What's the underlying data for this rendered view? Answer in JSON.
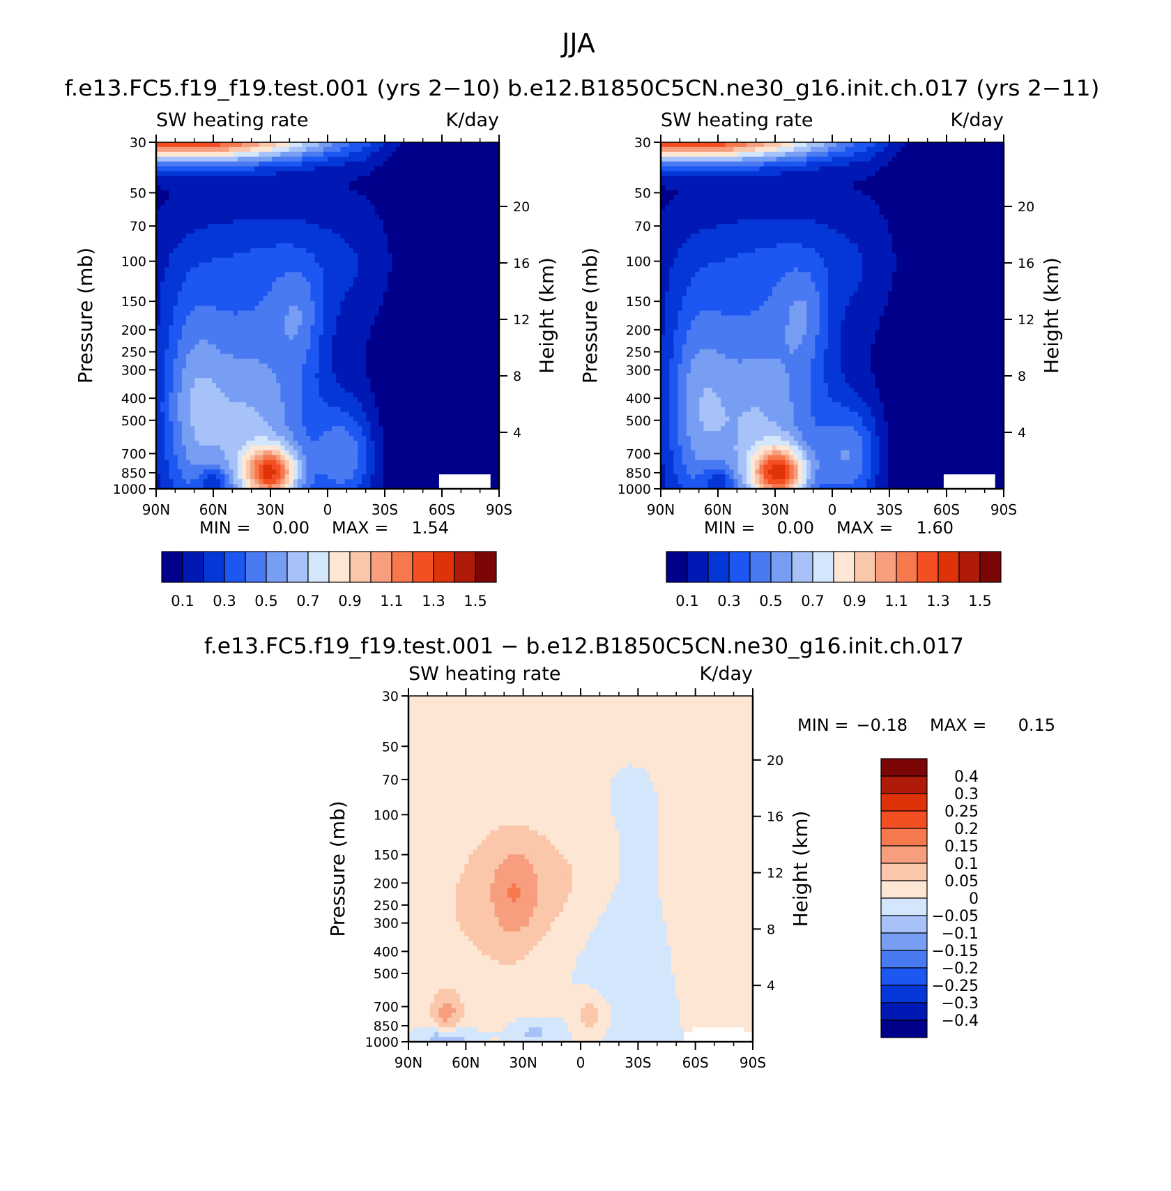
{
  "figure": {
    "season": "JJA",
    "top_title": "f.e13.FC5.f19_f19.test.001 (yrs 2−10)  b.e12.B1850C5CN.ne30_g16.init.ch.017 (yrs 2−11)",
    "diff_title": "f.e13.FC5.f19_f19.test.001 − b.e12.B1850C5CN.ne30_g16.init.ch.017"
  },
  "colors": {
    "abs_scale": [
      "#00008a",
      "#0019b4",
      "#0537d8",
      "#1d57f2",
      "#4a7af2",
      "#779ef2",
      "#a6c2f8",
      "#d4e6fb",
      "#fde6d4",
      "#fbc7ab",
      "#f79e7f",
      "#f6784d",
      "#f44f22",
      "#de3208",
      "#b01a08",
      "#7c0606"
    ],
    "diff_scale": [
      "#00008a",
      "#0019b4",
      "#0537d8",
      "#1d57f2",
      "#4a7af2",
      "#779ef2",
      "#a6c2f8",
      "#d4e6fb",
      "#fde6d4",
      "#fbc7ab",
      "#f79e7f",
      "#f6784d",
      "#f44f22",
      "#de3208",
      "#b01a08",
      "#7c0606"
    ]
  },
  "chart_data": [
    {
      "type": "heatmap",
      "name_in_figure": "f.e13.FC5.f19_f19.test.001 (yrs 2−10)",
      "left_label": "SW heating rate",
      "right_label": "K/day",
      "xlabel": "",
      "ylabel": "Pressure (mb)",
      "ylabel_right": "Height (km)",
      "x_ticks": [
        "90N",
        "60N",
        "30N",
        "0",
        "30S",
        "60S",
        "90S"
      ],
      "y_ticks": [
        30,
        50,
        70,
        100,
        150,
        200,
        250,
        300,
        400,
        500,
        700,
        850,
        1000
      ],
      "y_right_ticks": [
        20,
        16,
        12,
        8,
        4
      ],
      "ylim": [
        1000,
        30
      ],
      "y_scale": "log",
      "stats": {
        "min_label": "MIN =",
        "min": "0.00",
        "max_label": "MAX =",
        "max": "1.54"
      },
      "colorbar": {
        "orientation": "horizontal",
        "labels": [
          "0.1",
          "0.3",
          "0.5",
          "0.7",
          "0.9",
          "1.1",
          "1.3",
          "1.5"
        ]
      }
    },
    {
      "type": "heatmap",
      "name_in_figure": "b.e12.B1850C5CN.ne30_g16.init.ch.017 (yrs 2−11)",
      "left_label": "SW heating rate",
      "right_label": "K/day",
      "xlabel": "",
      "ylabel": "Pressure (mb)",
      "ylabel_right": "Height (km)",
      "x_ticks": [
        "90N",
        "60N",
        "30N",
        "0",
        "30S",
        "60S",
        "90S"
      ],
      "y_ticks": [
        30,
        50,
        70,
        100,
        150,
        200,
        250,
        300,
        400,
        500,
        700,
        850,
        1000
      ],
      "y_right_ticks": [
        20,
        16,
        12,
        8,
        4
      ],
      "ylim": [
        1000,
        30
      ],
      "y_scale": "log",
      "stats": {
        "min_label": "MIN =",
        "min": "0.00",
        "max_label": "MAX =",
        "max": "1.60"
      },
      "colorbar": {
        "orientation": "horizontal",
        "labels": [
          "0.1",
          "0.3",
          "0.5",
          "0.7",
          "0.9",
          "1.1",
          "1.3",
          "1.5"
        ]
      }
    },
    {
      "type": "heatmap",
      "name_in_figure": "f.e13.FC5.f19_f19.test.001 − b.e12.B1850C5CN.ne30_g16.init.ch.017",
      "left_label": "SW heating rate",
      "right_label": "K/day",
      "xlabel": "",
      "ylabel": "Pressure (mb)",
      "ylabel_right": "Height (km)",
      "x_ticks": [
        "90N",
        "60N",
        "30N",
        "0",
        "30S",
        "60S",
        "90S"
      ],
      "y_ticks": [
        30,
        50,
        70,
        100,
        150,
        200,
        250,
        300,
        400,
        500,
        700,
        850,
        1000
      ],
      "y_right_ticks": [
        20,
        16,
        12,
        8,
        4
      ],
      "ylim": [
        1000,
        30
      ],
      "y_scale": "log",
      "stats": {
        "min_label": "MIN =",
        "min": "−0.18",
        "max_label": "MAX =",
        "max": "0.15"
      },
      "colorbar": {
        "orientation": "vertical",
        "labels": [
          "0.4",
          "0.3",
          "0.25",
          "0.2",
          "0.15",
          "0.1",
          "0.05",
          "0",
          "−0.05",
          "−0.1",
          "−0.15",
          "−0.2",
          "−0.25",
          "−0.3",
          "−0.4"
        ]
      }
    }
  ]
}
